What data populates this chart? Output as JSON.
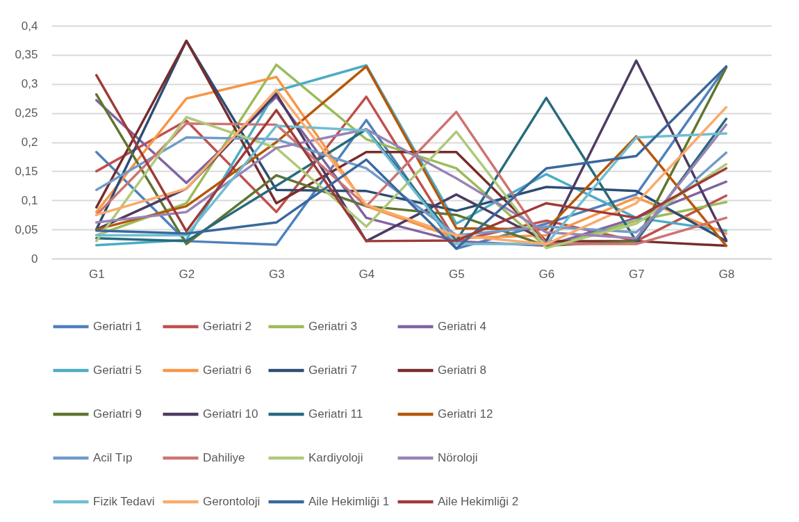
{
  "chart_data": {
    "type": "line",
    "categories": [
      "G1",
      "G2",
      "G3",
      "G4",
      "G5",
      "G6",
      "G7",
      "G8"
    ],
    "ylim": [
      0,
      0.4
    ],
    "yticks": [
      0,
      {
        "value": 0.05,
        "label": "0,05"
      },
      {
        "value": 0.1,
        "label": "0,1"
      },
      {
        "value": 0.15,
        "label": "0,15"
      },
      {
        "value": 0.2,
        "label": "0,2"
      },
      {
        "value": 0.25,
        "label": "0,25"
      },
      {
        "value": 0.3,
        "label": "0,3"
      },
      {
        "value": 0.35,
        "label": "0,35"
      },
      {
        "value": 0.4,
        "label": "0,4"
      }
    ],
    "grid": "y",
    "legend": "bottom",
    "line_style": "solid",
    "series": [
      {
        "name": "Geriatri 1",
        "color": "#4f81bd",
        "values": [
          0.183,
          0.03,
          0.024,
          0.238,
          0.017,
          0.06,
          0.11,
          0.33
        ]
      },
      {
        "name": "Geriatri 2",
        "color": "#c0504d",
        "values": [
          0.15,
          0.237,
          0.08,
          0.278,
          0.03,
          0.065,
          0.03,
          0.108
        ]
      },
      {
        "name": "Geriatri 3",
        "color": "#9bbb59",
        "values": [
          0.04,
          0.095,
          0.333,
          0.205,
          0.155,
          0.02,
          0.065,
          0.097
        ]
      },
      {
        "name": "Geriatri 4",
        "color": "#8064a2",
        "values": [
          0.272,
          0.13,
          0.278,
          0.07,
          0.03,
          0.022,
          0.07,
          0.132
        ]
      },
      {
        "name": "Geriatri 5",
        "color": "#4bacc6",
        "values": [
          0.023,
          0.032,
          0.288,
          0.332,
          0.06,
          0.145,
          0.07,
          0.048
        ]
      },
      {
        "name": "Geriatri 6",
        "color": "#f79646",
        "values": [
          0.08,
          0.275,
          0.312,
          0.09,
          0.035,
          0.04,
          0.105,
          0.043
        ]
      },
      {
        "name": "Geriatri 7",
        "color": "#2c4d75",
        "values": [
          0.05,
          0.374,
          0.118,
          0.116,
          0.082,
          0.123,
          0.116,
          0.03
        ]
      },
      {
        "name": "Geriatri 8",
        "color": "#772c2a",
        "values": [
          0.088,
          0.374,
          0.095,
          0.183,
          0.183,
          0.03,
          0.03,
          0.022
        ]
      },
      {
        "name": "Geriatri 9",
        "color": "#5f7530",
        "values": [
          0.282,
          0.025,
          0.143,
          0.09,
          0.075,
          0.022,
          0.03,
          0.328
        ]
      },
      {
        "name": "Geriatri 10",
        "color": "#4d3b62",
        "values": [
          0.05,
          0.12,
          0.283,
          0.03,
          0.11,
          0.03,
          0.34,
          0.032
        ]
      },
      {
        "name": "Geriatri 11",
        "color": "#276a7c",
        "values": [
          0.035,
          0.03,
          0.125,
          0.222,
          0.03,
          0.276,
          0.03,
          0.24
        ]
      },
      {
        "name": "Geriatri 12",
        "color": "#b65708",
        "values": [
          0.05,
          0.09,
          0.2,
          0.33,
          0.052,
          0.05,
          0.21,
          0.022
        ]
      },
      {
        "name": "Acil Tıp",
        "color": "#729aca",
        "values": [
          0.118,
          0.208,
          0.205,
          0.155,
          0.04,
          0.055,
          0.045,
          0.182
        ]
      },
      {
        "name": "Dahiliye",
        "color": "#cd7371",
        "values": [
          0.075,
          0.232,
          0.23,
          0.09,
          0.252,
          0.025,
          0.025,
          0.07
        ]
      },
      {
        "name": "Kardiyoloji",
        "color": "#afc97a",
        "values": [
          0.03,
          0.243,
          0.19,
          0.055,
          0.218,
          0.018,
          0.06,
          0.162
        ]
      },
      {
        "name": "Nöroloji",
        "color": "#9983b5",
        "values": [
          0.062,
          0.08,
          0.19,
          0.222,
          0.138,
          0.045,
          0.035,
          0.23
        ]
      },
      {
        "name": "Fizik Tedavi",
        "color": "#6fbdd1",
        "values": [
          0.04,
          0.04,
          0.228,
          0.22,
          0.025,
          0.025,
          0.208,
          0.215
        ]
      },
      {
        "name": "Gerontoloji",
        "color": "#f9ab6b",
        "values": [
          0.075,
          0.12,
          0.29,
          0.092,
          0.04,
          0.025,
          0.095,
          0.26
        ]
      },
      {
        "name": "Aile Hekimliği 1",
        "color": "#3a679c",
        "values": [
          0.048,
          0.043,
          0.062,
          0.17,
          0.017,
          0.155,
          0.176,
          0.33
        ]
      },
      {
        "name": "Aile Hekimliği 2",
        "color": "#9e3a38",
        "values": [
          0.315,
          0.047,
          0.255,
          0.03,
          0.031,
          0.095,
          0.07,
          0.155
        ]
      }
    ]
  }
}
